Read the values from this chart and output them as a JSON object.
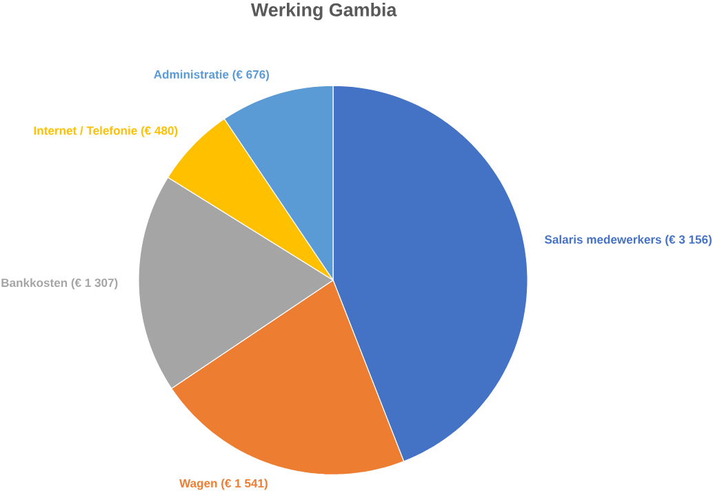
{
  "chart_data": {
    "type": "pie",
    "title": "Werking Gambia",
    "categories": [
      "Salaris medewerkers (€ 3 156)",
      "Wagen (€ 1 541)",
      "Bankkosten (€ 1 307)",
      "Internet / Telefonie (€ 480)",
      "Administratie (€ 676)"
    ],
    "values": [
      3156,
      1541,
      1307,
      480,
      676
    ],
    "colors": [
      "#4472c4",
      "#ed7d31",
      "#a5a5a5",
      "#ffc000",
      "#5b9bd5"
    ]
  }
}
